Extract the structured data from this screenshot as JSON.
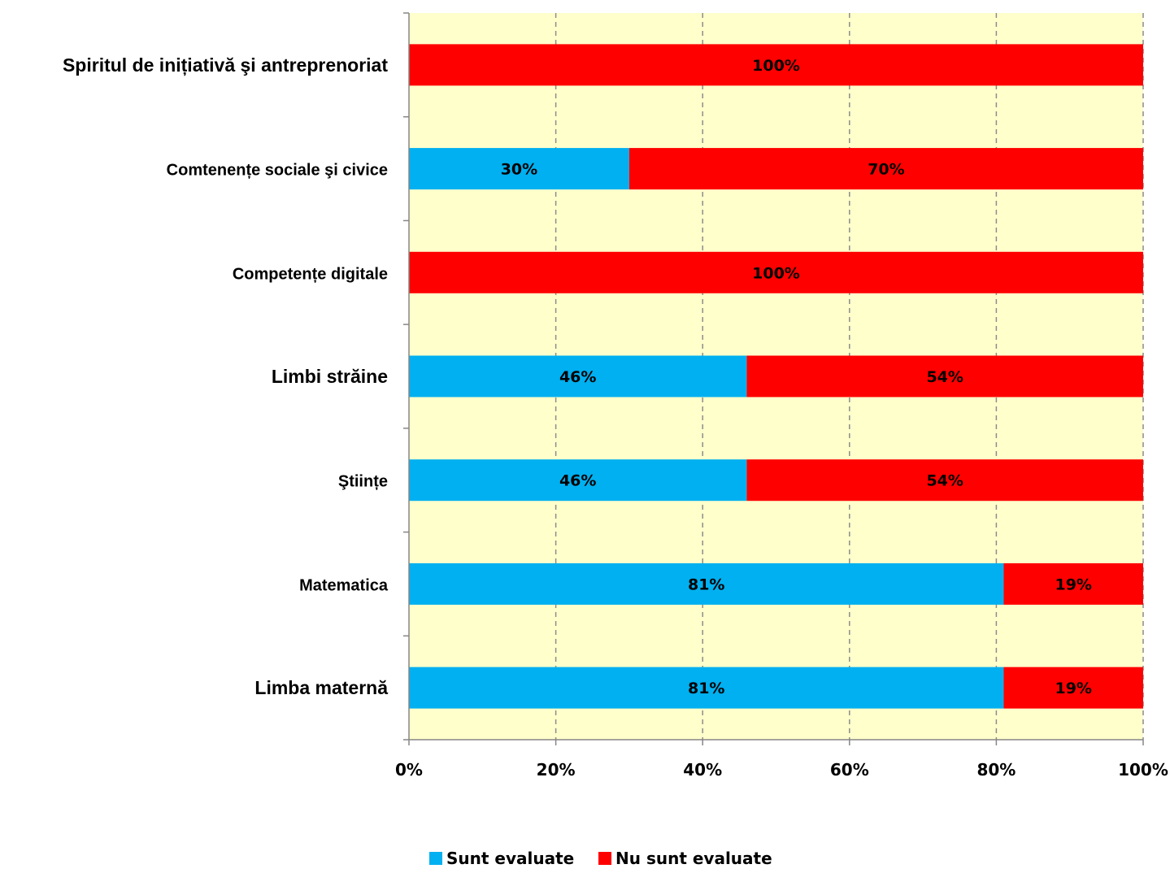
{
  "chart_data": {
    "type": "bar",
    "orientation": "horizontal",
    "stacked": true,
    "categories": [
      "Spiritul de inițiativă şi antreprenoriat",
      "Comtenențe sociale şi civice",
      "Competențe digitale",
      "Limbi străine",
      "Ştiințe",
      "Matematica",
      "Limba maternă"
    ],
    "series": [
      {
        "name": "Sunt evaluate",
        "color": "#00B0F0",
        "values": [
          0,
          30,
          0,
          46,
          46,
          81,
          81
        ],
        "labels": [
          "",
          "30%",
          "",
          "46%",
          "46%",
          "81%",
          "81%"
        ]
      },
      {
        "name": "Nu sunt evaluate",
        "color": "#FF0000",
        "values": [
          100,
          70,
          100,
          54,
          54,
          19,
          19
        ],
        "labels": [
          "100%",
          "70%",
          "100%",
          "54%",
          "54%",
          "19%",
          "19%"
        ]
      }
    ],
    "xlim": [
      0,
      100
    ],
    "x_ticks": [
      "0%",
      "20%",
      "40%",
      "60%",
      "80%",
      "100%"
    ],
    "grid": true,
    "plot_background": "#FFFFCC",
    "legend_position": "bottom"
  }
}
